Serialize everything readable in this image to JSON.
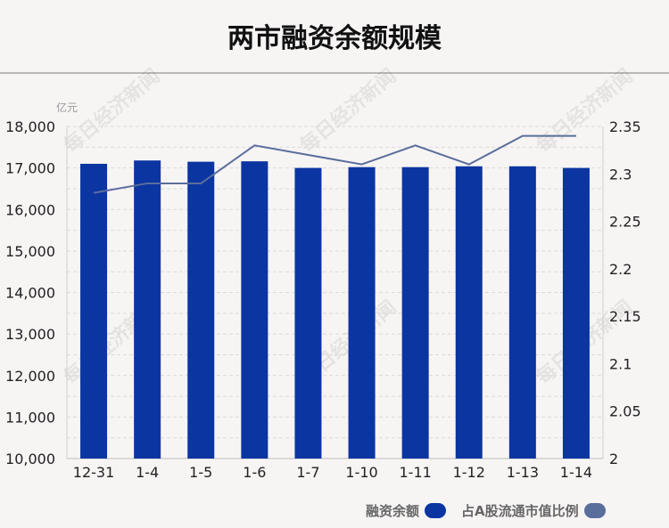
{
  "title": "两市融资余额规模",
  "chart_data": {
    "type": "bar",
    "title": "两市融资余额规模",
    "unit_label": "亿元",
    "categories": [
      "12-31",
      "1-4",
      "1-5",
      "1-6",
      "1-7",
      "1-10",
      "1-11",
      "1-12",
      "1-13",
      "1-14"
    ],
    "series": [
      {
        "name": "融资余额",
        "type": "bar",
        "axis": "left",
        "color": "#0b35a1",
        "values": [
          17100,
          17180,
          17150,
          17160,
          17000,
          17020,
          17020,
          17040,
          17040,
          17000
        ]
      },
      {
        "name": "占A股流通市值比例",
        "type": "line",
        "axis": "right",
        "color": "#5a6e9c",
        "values": [
          2.28,
          2.29,
          2.29,
          2.33,
          2.32,
          2.31,
          2.33,
          2.31,
          2.34,
          2.34
        ]
      }
    ],
    "y_left": {
      "min": 10000,
      "max": 18000,
      "ticks": [
        "10,000",
        "11,000",
        "12,000",
        "13,000",
        "14,000",
        "15,000",
        "16,000",
        "17,000",
        "18,000"
      ]
    },
    "y_right": {
      "min": 2,
      "max": 2.35,
      "ticks": [
        "2",
        "2.05",
        "2.1",
        "2.15",
        "2.2",
        "2.25",
        "2.3",
        "2.35"
      ]
    },
    "grid": true,
    "legend_position": "bottom-right"
  },
  "watermark": "每日经济新闻"
}
